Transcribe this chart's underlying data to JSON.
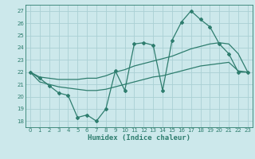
{
  "xlabel": "Humidex (Indice chaleur)",
  "x": [
    0,
    1,
    2,
    3,
    4,
    5,
    6,
    7,
    8,
    9,
    10,
    11,
    12,
    13,
    14,
    15,
    16,
    17,
    18,
    19,
    20,
    21,
    22,
    23
  ],
  "line_zigzag": [
    22.0,
    21.5,
    20.9,
    20.3,
    20.1,
    18.3,
    18.5,
    18.0,
    19.0,
    22.1,
    20.5,
    24.3,
    24.4,
    24.2,
    20.5,
    24.6,
    26.1,
    27.0,
    26.3,
    25.7,
    24.3,
    23.5,
    22.0,
    22.0
  ],
  "line_upper": [
    22.0,
    21.6,
    21.5,
    21.4,
    21.4,
    21.4,
    21.5,
    21.5,
    21.7,
    22.0,
    22.2,
    22.5,
    22.7,
    22.9,
    23.1,
    23.3,
    23.6,
    23.9,
    24.1,
    24.3,
    24.4,
    24.3,
    23.5,
    22.0
  ],
  "line_lower": [
    22.0,
    21.2,
    21.0,
    20.8,
    20.7,
    20.6,
    20.5,
    20.5,
    20.6,
    20.8,
    21.0,
    21.2,
    21.4,
    21.6,
    21.7,
    21.9,
    22.1,
    22.3,
    22.5,
    22.6,
    22.7,
    22.8,
    22.1,
    22.0
  ],
  "line_color": "#2e7d6e",
  "bg_color": "#cce8eb",
  "grid_color": "#aad0d4",
  "xlim": [
    -0.5,
    23.5
  ],
  "ylim": [
    17.5,
    27.5
  ],
  "yticks": [
    18,
    19,
    20,
    21,
    22,
    23,
    24,
    25,
    26,
    27
  ],
  "xticks": [
    0,
    1,
    2,
    3,
    4,
    5,
    6,
    7,
    8,
    9,
    10,
    11,
    12,
    13,
    14,
    15,
    16,
    17,
    18,
    19,
    20,
    21,
    22,
    23
  ],
  "tick_fontsize": 5.0,
  "xlabel_fontsize": 6.5
}
